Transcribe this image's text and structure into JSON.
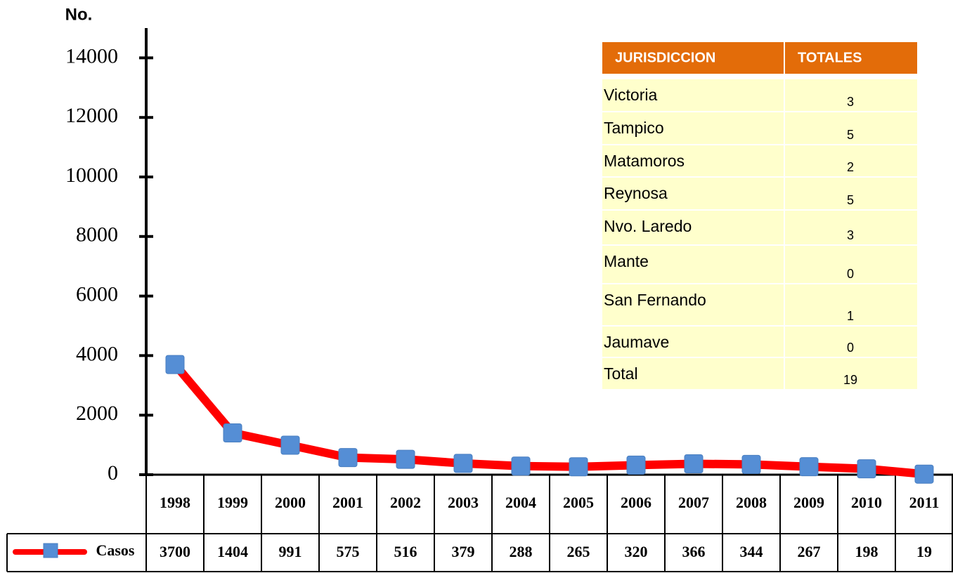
{
  "chart_data": {
    "type": "line",
    "y_label": "No.",
    "categories": [
      "1998",
      "1999",
      "2000",
      "2001",
      "2002",
      "2003",
      "2004",
      "2005",
      "2006",
      "2007",
      "2008",
      "2009",
      "2010",
      "2011"
    ],
    "series": [
      {
        "name": "Casos",
        "color": "#ff0000",
        "marker_color": "#558ed5",
        "values": [
          3700,
          1404,
          991,
          575,
          516,
          379,
          288,
          265,
          320,
          366,
          344,
          267,
          198,
          19
        ]
      }
    ],
    "ylim": [
      0,
      15000
    ],
    "yticks": [
      0,
      2000,
      4000,
      6000,
      8000,
      10000,
      12000,
      14000
    ]
  },
  "table": {
    "header": [
      "JURISDICCION",
      "TOTALES"
    ],
    "rows": [
      [
        "Victoria",
        3
      ],
      [
        "Tampico",
        5
      ],
      [
        "Matamoros",
        2
      ],
      [
        "Reynosa",
        5
      ],
      [
        "Nvo. Laredo",
        3
      ],
      [
        "Mante",
        0
      ],
      [
        "San Fernando",
        1
      ],
      [
        "Jaumave",
        0
      ],
      [
        "Total",
        19
      ]
    ]
  }
}
